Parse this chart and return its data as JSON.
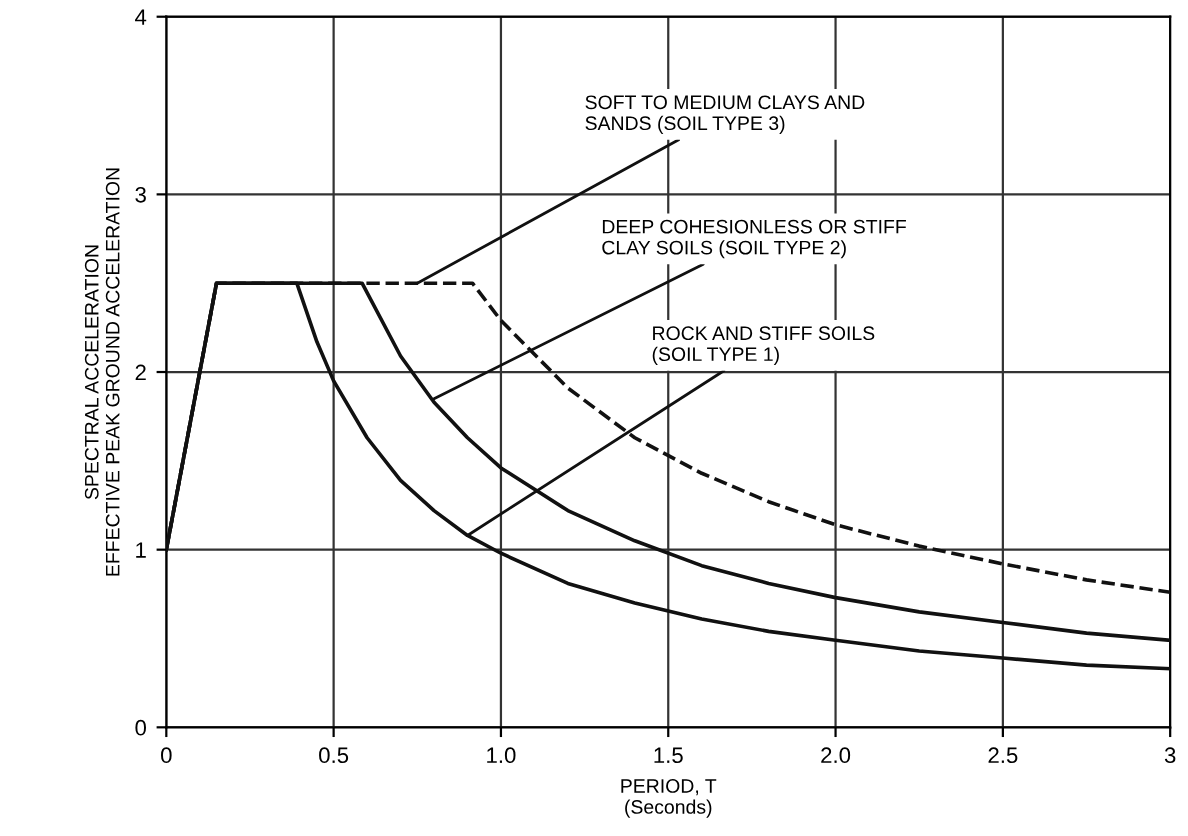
{
  "chart_data": {
    "type": "line",
    "xlabel": "PERIOD, T\n(Seconds)",
    "ylabel": "SPECTRAL ACCELERATION\nEFFECTIVE PEAK GROUND ACCELERATION",
    "series": [
      {
        "color": "#111111",
        "line_style": "solid",
        "x": [
          0,
          0.15,
          0.39,
          0.45,
          0.5,
          0.6,
          0.7,
          0.8,
          0.9,
          1.0,
          1.2,
          1.4,
          1.6,
          1.8,
          2.0,
          2.25,
          2.5,
          2.75,
          3.0
        ],
        "values": [
          1.0,
          2.5,
          2.5,
          2.17,
          1.95,
          1.63,
          1.39,
          1.22,
          1.08,
          0.98,
          0.81,
          0.7,
          0.61,
          0.54,
          0.49,
          0.43,
          0.39,
          0.35,
          0.33
        ]
      },
      {
        "color": "#111111",
        "line_style": "solid",
        "x": [
          0,
          0.15,
          0.585,
          0.7,
          0.8,
          0.9,
          1.0,
          1.2,
          1.4,
          1.6,
          1.8,
          2.0,
          2.25,
          2.5,
          2.75,
          3.0
        ],
        "values": [
          1.0,
          2.5,
          2.5,
          2.09,
          1.83,
          1.63,
          1.46,
          1.22,
          1.05,
          0.91,
          0.81,
          0.73,
          0.65,
          0.59,
          0.53,
          0.49
        ]
      },
      {
        "color": "#111111",
        "line_style": "dashed",
        "x": [
          0,
          0.15,
          0.915,
          1.0,
          1.2,
          1.4,
          1.6,
          1.8,
          2.0,
          2.25,
          2.5,
          2.75,
          3.0
        ],
        "values": [
          1.0,
          2.5,
          2.5,
          2.29,
          1.91,
          1.63,
          1.43,
          1.27,
          1.14,
          1.02,
          0.92,
          0.83,
          0.76
        ]
      }
    ],
    "annotations": [
      {
        "text": "SOFT TO MEDIUM CLAYS AND\nSANDS (SOIL TYPE 3)",
        "x": 0.75,
        "y": 2.5
      },
      {
        "text": "DEEP COHESIONLESS OR STIFF\nCLAY SOILS (SOIL TYPE 2)",
        "x": 0.8,
        "y": 1.85
      },
      {
        "text": "ROCK AND STIFF SOILS\n(SOIL TYPE 1)",
        "x": 0.9,
        "y": 1.08
      }
    ],
    "xlim": [
      0,
      3
    ],
    "ylim": [
      0,
      4
    ],
    "xticks": [
      0,
      0.5,
      {
        "value": 1,
        "label": "1.0"
      },
      1.5,
      {
        "value": 2,
        "label": "2.0"
      },
      2.5,
      3
    ],
    "yticks": [
      0,
      1,
      2,
      3,
      4
    ],
    "grid": true
  }
}
